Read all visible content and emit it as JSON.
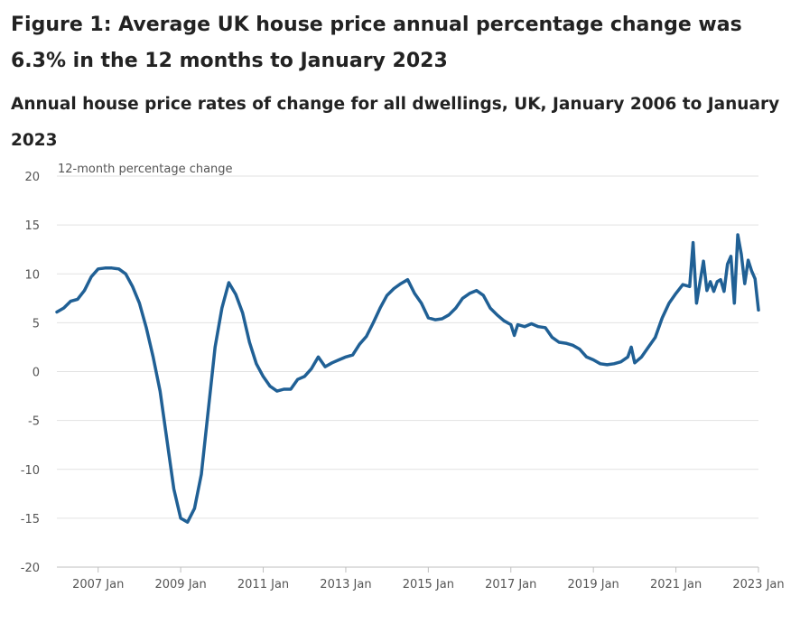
{
  "title": "Figure 1: Average UK house price annual percentage change was 6.3% in the 12 months to January 2023",
  "subtitle": "Annual house price rates of change for all dwellings, UK, January 2006 to January 2023",
  "chart_data": {
    "type": "line",
    "ylabel": "12-month percentage change",
    "ylim": [
      -20,
      20
    ],
    "yticks": [
      20,
      15,
      10,
      5,
      0,
      -5,
      -10,
      -15,
      -20
    ],
    "xlim": [
      "2006-01",
      "2023-01"
    ],
    "xticks": [
      {
        "date": "2007-01",
        "label": "2007 Jan"
      },
      {
        "date": "2009-01",
        "label": "2009 Jan"
      },
      {
        "date": "2011-01",
        "label": "2011 Jan"
      },
      {
        "date": "2013-01",
        "label": "2013 Jan"
      },
      {
        "date": "2015-01",
        "label": "2015 Jan"
      },
      {
        "date": "2017-01",
        "label": "2017 Jan"
      },
      {
        "date": "2019-01",
        "label": "2019 Jan"
      },
      {
        "date": "2021-01",
        "label": "2021 Jan"
      },
      {
        "date": "2023-01",
        "label": "2023 Jan"
      }
    ],
    "grid": true,
    "line_color": "#206095",
    "series": [
      {
        "points": [
          [
            "2006-01",
            6.1
          ],
          [
            "2006-03",
            6.5
          ],
          [
            "2006-05",
            7.2
          ],
          [
            "2006-07",
            7.4
          ],
          [
            "2006-09",
            8.3
          ],
          [
            "2006-11",
            9.7
          ],
          [
            "2007-01",
            10.5
          ],
          [
            "2007-03",
            10.6
          ],
          [
            "2007-05",
            10.6
          ],
          [
            "2007-07",
            10.5
          ],
          [
            "2007-09",
            10.0
          ],
          [
            "2007-11",
            8.7
          ],
          [
            "2008-01",
            7.0
          ],
          [
            "2008-03",
            4.5
          ],
          [
            "2008-05",
            1.5
          ],
          [
            "2008-07",
            -2.0
          ],
          [
            "2008-09",
            -7.0
          ],
          [
            "2008-11",
            -12.0
          ],
          [
            "2009-01",
            -15.0
          ],
          [
            "2009-03",
            -15.4
          ],
          [
            "2009-05",
            -14.0
          ],
          [
            "2009-07",
            -10.5
          ],
          [
            "2009-09",
            -4.0
          ],
          [
            "2009-11",
            2.5
          ],
          [
            "2010-01",
            6.5
          ],
          [
            "2010-03",
            9.1
          ],
          [
            "2010-05",
            7.9
          ],
          [
            "2010-07",
            6.0
          ],
          [
            "2010-09",
            3.0
          ],
          [
            "2010-11",
            0.8
          ],
          [
            "2011-01",
            -0.5
          ],
          [
            "2011-03",
            -1.5
          ],
          [
            "2011-05",
            -2.0
          ],
          [
            "2011-07",
            -1.8
          ],
          [
            "2011-09",
            -1.8
          ],
          [
            "2011-11",
            -0.8
          ],
          [
            "2012-01",
            -0.5
          ],
          [
            "2012-03",
            0.3
          ],
          [
            "2012-05",
            1.5
          ],
          [
            "2012-07",
            0.5
          ],
          [
            "2012-09",
            0.9
          ],
          [
            "2012-11",
            1.2
          ],
          [
            "2013-01",
            1.5
          ],
          [
            "2013-03",
            1.7
          ],
          [
            "2013-05",
            2.8
          ],
          [
            "2013-07",
            3.6
          ],
          [
            "2013-09",
            5.0
          ],
          [
            "2013-11",
            6.5
          ],
          [
            "2014-01",
            7.8
          ],
          [
            "2014-03",
            8.5
          ],
          [
            "2014-05",
            9.0
          ],
          [
            "2014-07",
            9.4
          ],
          [
            "2014-09",
            8.0
          ],
          [
            "2014-11",
            7.0
          ],
          [
            "2015-01",
            5.5
          ],
          [
            "2015-03",
            5.3
          ],
          [
            "2015-05",
            5.4
          ],
          [
            "2015-07",
            5.8
          ],
          [
            "2015-09",
            6.5
          ],
          [
            "2015-11",
            7.5
          ],
          [
            "2016-01",
            8.0
          ],
          [
            "2016-03",
            8.3
          ],
          [
            "2016-05",
            7.8
          ],
          [
            "2016-07",
            6.5
          ],
          [
            "2016-09",
            5.8
          ],
          [
            "2016-11",
            5.2
          ],
          [
            "2017-01",
            4.8
          ],
          [
            "2017-02",
            3.7
          ],
          [
            "2017-03",
            4.8
          ],
          [
            "2017-05",
            4.6
          ],
          [
            "2017-07",
            4.9
          ],
          [
            "2017-09",
            4.6
          ],
          [
            "2017-11",
            4.5
          ],
          [
            "2018-01",
            3.5
          ],
          [
            "2018-03",
            3.0
          ],
          [
            "2018-05",
            2.9
          ],
          [
            "2018-07",
            2.7
          ],
          [
            "2018-09",
            2.3
          ],
          [
            "2018-11",
            1.5
          ],
          [
            "2019-01",
            1.2
          ],
          [
            "2019-03",
            0.8
          ],
          [
            "2019-05",
            0.7
          ],
          [
            "2019-07",
            0.8
          ],
          [
            "2019-09",
            1.0
          ],
          [
            "2019-11",
            1.5
          ],
          [
            "2019-12",
            2.5
          ],
          [
            "2020-01",
            0.9
          ],
          [
            "2020-03",
            1.5
          ],
          [
            "2020-05",
            2.5
          ],
          [
            "2020-07",
            3.5
          ],
          [
            "2020-09",
            5.5
          ],
          [
            "2020-11",
            7.0
          ],
          [
            "2021-01",
            8.0
          ],
          [
            "2021-03",
            8.9
          ],
          [
            "2021-05",
            8.7
          ],
          [
            "2021-06",
            13.2
          ],
          [
            "2021-07",
            7.0
          ],
          [
            "2021-09",
            11.3
          ],
          [
            "2021-10",
            8.3
          ],
          [
            "2021-11",
            9.2
          ],
          [
            "2021-12",
            8.2
          ],
          [
            "2022-01",
            9.2
          ],
          [
            "2022-02",
            9.4
          ],
          [
            "2022-03",
            8.2
          ],
          [
            "2022-04",
            11.0
          ],
          [
            "2022-05",
            11.8
          ],
          [
            "2022-06",
            7.0
          ],
          [
            "2022-07",
            14.0
          ],
          [
            "2022-08",
            12.0
          ],
          [
            "2022-09",
            9.0
          ],
          [
            "2022-10",
            11.4
          ],
          [
            "2022-11",
            10.3
          ],
          [
            "2022-12",
            9.5
          ],
          [
            "2023-01",
            6.3
          ]
        ]
      }
    ]
  }
}
